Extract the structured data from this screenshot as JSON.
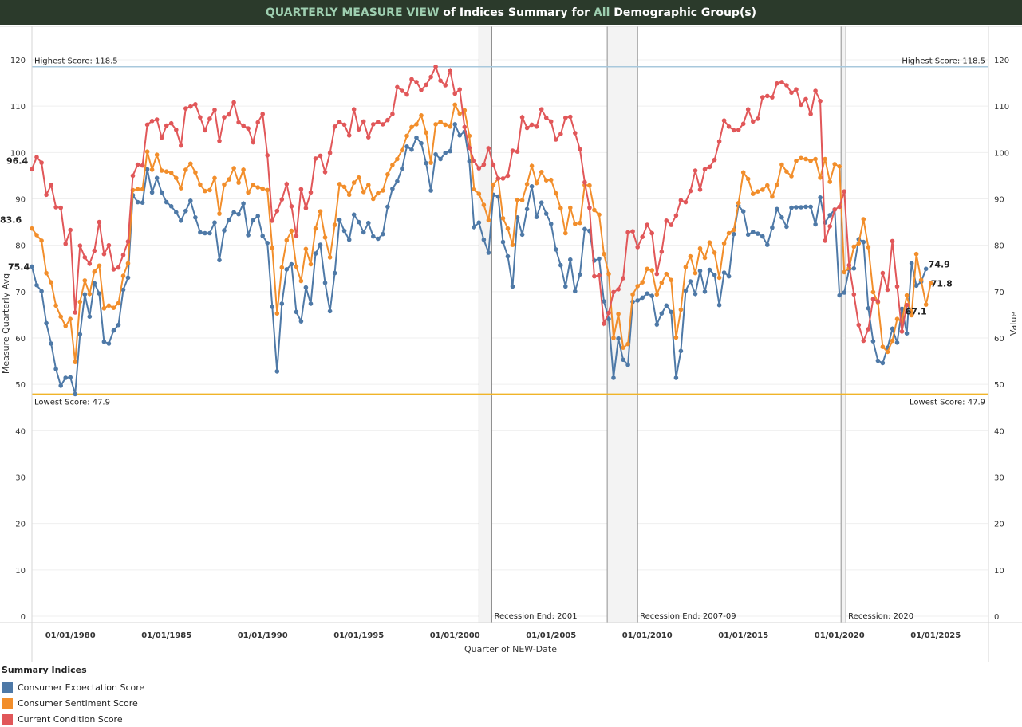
{
  "header": {
    "part1": "QUARTERLY MEASURE VIEW",
    "part2": " of Indices Summary for ",
    "part3": "All",
    "part4": " Demographic Group(s)"
  },
  "legend": {
    "title": "Summary Indices",
    "items": [
      {
        "label": "Consumer Expectation Score",
        "color": "#4e79a7"
      },
      {
        "label": "Consumer Sentiment  Score",
        "color": "#f28e2b"
      },
      {
        "label": "Current Condition Score",
        "color": "#e15759"
      }
    ]
  },
  "chart_data": {
    "type": "line",
    "xlabel": "Quarter of NEW-Date",
    "ylabel_left": "Measure Quarterly Avg",
    "ylabel_right": "Value",
    "ylim": [
      0,
      122
    ],
    "yticks": [
      0,
      10,
      20,
      30,
      40,
      50,
      60,
      70,
      80,
      90,
      100,
      110,
      120
    ],
    "xlim": [
      1978.0,
      2027.75
    ],
    "xticks": [
      {
        "x": 1980,
        "label": "01/01/1980"
      },
      {
        "x": 1985,
        "label": "01/01/1985"
      },
      {
        "x": 1990,
        "label": "01/01/1990"
      },
      {
        "x": 1995,
        "label": "01/01/1995"
      },
      {
        "x": 2000,
        "label": "01/01/2000"
      },
      {
        "x": 2005,
        "label": "01/01/2005"
      },
      {
        "x": 2010,
        "label": "01/01/2010"
      },
      {
        "x": 2015,
        "label": "01/01/2015"
      },
      {
        "x": 2020,
        "label": "01/01/2020"
      },
      {
        "x": 2025,
        "label": "01/01/2025"
      }
    ],
    "reference_lines": [
      {
        "value": 118.5,
        "label_left": "Highest Score: 118.5",
        "label_right": "Highest Score: 118.5",
        "color": "#a8c8dc"
      },
      {
        "value": 47.9,
        "label_left": "Lowest Score: 47.9",
        "label_right": "Lowest Score: 47.9",
        "color": "#f0b429"
      }
    ],
    "recession_bands": [
      {
        "start": 2001.25,
        "end": 2001.92,
        "label": "Recession End: 2001"
      },
      {
        "start": 2007.92,
        "end": 2009.5,
        "label": "Recession End: 2007-09"
      },
      {
        "start": 2020.08,
        "end": 2020.33,
        "label": "Recession: 2020"
      }
    ],
    "x_start": 1978.0,
    "x_step": 0.25,
    "series": [
      {
        "name": "Consumer Expectation Score",
        "color": "#4e79a7",
        "start_label": "75.4",
        "end_label": "74.9",
        "values": [
          75.4,
          71.4,
          70.1,
          63.2,
          58.8,
          53.3,
          49.7,
          51.4,
          51.5,
          47.9,
          60.8,
          69.4,
          64.6,
          71.8,
          69.6,
          59.2,
          58.8,
          61.6,
          62.8,
          70.4,
          73.0,
          90.8,
          89.3,
          89.2,
          96.4,
          91.4,
          94.5,
          91.4,
          89.3,
          88.4,
          87.1,
          85.3,
          87.4,
          89.6,
          86.0,
          82.8,
          82.6,
          82.6,
          84.9,
          76.8,
          83.2,
          85.5,
          87.1,
          86.7,
          89.0,
          82.2,
          85.4,
          86.3,
          82.0,
          80.5,
          66.7,
          52.8,
          67.4,
          74.8,
          75.9,
          65.6,
          63.6,
          70.9,
          67.4,
          78.2,
          80.1,
          71.9,
          65.8,
          74.0,
          85.5,
          83.1,
          81.2,
          86.6,
          85.0,
          82.8,
          84.8,
          81.9,
          81.4,
          82.4,
          88.3,
          92.2,
          93.8,
          96.5,
          101.3,
          100.6,
          103.2,
          102.0,
          97.7,
          91.8,
          99.6,
          98.6,
          99.9,
          100.3,
          106.1,
          103.7,
          104.5,
          98.1,
          83.9,
          84.9,
          81.2,
          78.4,
          90.9,
          90.5,
          80.7,
          77.6,
          71.1,
          86.0,
          82.3,
          87.8,
          92.7,
          86.1,
          89.2,
          86.8,
          84.6,
          79.1,
          75.7,
          71.1,
          76.9,
          70.1,
          73.7,
          83.5,
          83.1,
          76.7,
          77.1,
          67.9,
          64.1,
          51.4,
          59.9,
          55.3,
          54.2,
          67.8,
          68.1,
          68.7,
          69.6,
          69.1,
          62.9,
          65.3,
          67.0,
          65.6,
          51.4,
          57.2,
          70.2,
          72.2,
          69.5,
          74.5,
          70.0,
          74.7,
          73.6,
          67.1,
          74.1,
          73.3,
          82.4,
          88.5,
          87.3,
          82.3,
          82.9,
          82.5,
          81.9,
          80.1,
          83.8,
          87.8,
          86.0,
          84.0,
          88.1,
          88.2,
          88.2,
          88.3,
          88.3,
          84.5,
          90.3,
          84.9,
          86.5,
          87.7,
          69.2,
          69.8,
          74.8,
          75.0,
          81.3,
          80.7,
          66.4,
          59.3,
          55.1,
          54.6,
          57.9,
          62.0,
          59.0,
          66.3,
          61.0,
          76.1,
          71.3,
          72.1,
          74.9
        ]
      },
      {
        "name": "Consumer Sentiment  Score",
        "color": "#f28e2b",
        "start_label": "83.6",
        "end_label": "71.8",
        "values": [
          83.6,
          82.2,
          81.0,
          74.0,
          72.0,
          67.0,
          64.6,
          62.6,
          64.1,
          54.8,
          67.8,
          72.4,
          69.5,
          74.3,
          75.6,
          66.4,
          67.0,
          66.5,
          67.5,
          73.4,
          76.1,
          91.9,
          92.1,
          92.1,
          100.2,
          96.3,
          99.5,
          96.1,
          95.9,
          95.6,
          94.5,
          92.3,
          96.3,
          97.6,
          95.7,
          93.1,
          91.7,
          91.9,
          94.5,
          86.8,
          93.1,
          94.2,
          96.6,
          93.5,
          96.3,
          91.4,
          93.0,
          92.5,
          92.2,
          91.9,
          79.4,
          65.3,
          75.2,
          81.1,
          83.1,
          75.4,
          72.3,
          79.2,
          75.9,
          83.6,
          87.3,
          81.7,
          77.4,
          84.4,
          93.2,
          92.6,
          90.9,
          93.5,
          94.6,
          91.5,
          93.0,
          90.0,
          91.2,
          91.8,
          95.3,
          97.3,
          98.6,
          100.5,
          103.6,
          105.5,
          106.1,
          108.0,
          104.3,
          97.8,
          106.1,
          106.6,
          106.0,
          105.6,
          110.3,
          108.4,
          109.1,
          103.6,
          92.1,
          91.1,
          88.7,
          85.4,
          93.1,
          94.4,
          85.8,
          83.6,
          80.1,
          89.8,
          89.7,
          93.2,
          97.1,
          93.4,
          95.8,
          94.0,
          94.1,
          91.2,
          88.0,
          82.6,
          88.1,
          84.6,
          84.8,
          93.0,
          92.9,
          87.6,
          86.6,
          78.1,
          73.8,
          60.0,
          65.2,
          57.9,
          58.7,
          69.4,
          71.2,
          72.0,
          74.9,
          74.6,
          69.4,
          71.9,
          73.8,
          72.5,
          60.1,
          66.1,
          75.3,
          77.6,
          74.0,
          79.3,
          77.3,
          80.6,
          78.4,
          73.0,
          80.4,
          82.6,
          83.3,
          89.1,
          95.7,
          94.3,
          91.1,
          91.6,
          92.0,
          92.9,
          90.5,
          93.1,
          97.4,
          95.9,
          94.9,
          98.2,
          98.8,
          98.6,
          98.2,
          98.6,
          94.6,
          98.6,
          93.7,
          97.5,
          97.0,
          74.2,
          75.1,
          79.7,
          80.4,
          85.6,
          79.6,
          69.9,
          67.7,
          58.1,
          57.0,
          59.4,
          64.1,
          63.6,
          69.2,
          64.9,
          78.1,
          72.5,
          67.2,
          71.8
        ]
      },
      {
        "name": "Current Condition Score",
        "color": "#e15759",
        "start_label": "96.4",
        "end_label": "67.1",
        "values": [
          96.4,
          99.0,
          97.8,
          90.9,
          93.0,
          88.2,
          88.1,
          80.3,
          83.3,
          65.5,
          79.9,
          77.4,
          76.0,
          78.8,
          85.0,
          78.1,
          80.0,
          74.8,
          75.2,
          77.9,
          80.8,
          95.0,
          97.4,
          97.2,
          106.0,
          106.8,
          107.1,
          103.2,
          105.8,
          106.3,
          104.9,
          101.5,
          109.5,
          109.9,
          110.4,
          107.6,
          104.8,
          107.3,
          109.2,
          102.5,
          107.6,
          108.2,
          110.8,
          106.5,
          105.8,
          105.2,
          102.2,
          106.5,
          108.3,
          99.4,
          85.3,
          87.4,
          89.9,
          93.2,
          88.4,
          82.0,
          92.1,
          88.0,
          91.4,
          98.7,
          99.3,
          95.8,
          99.9,
          105.6,
          106.6,
          106.0,
          103.7,
          109.3,
          105.0,
          106.7,
          103.3,
          106.1,
          106.6,
          106.1,
          107.0,
          108.3,
          114.1,
          113.3,
          112.5,
          115.8,
          115.2,
          113.5,
          114.6,
          116.3,
          118.5,
          115.5,
          114.5,
          117.7,
          112.7,
          113.6,
          105.5,
          101.0,
          98.2,
          96.6,
          97.4,
          100.9,
          97.3,
          94.4,
          94.4,
          95.0,
          100.4,
          100.2,
          107.6,
          105.3,
          106.0,
          105.6,
          109.3,
          107.5,
          106.7,
          102.8,
          104.0,
          107.5,
          107.7,
          104.2,
          100.7,
          93.6,
          88.1,
          73.3,
          73.5,
          63.1,
          65.4,
          69.9,
          70.5,
          72.9,
          82.8,
          83.0,
          79.6,
          81.8,
          84.4,
          82.6,
          73.8,
          78.6,
          85.3,
          84.4,
          86.4,
          89.7,
          89.3,
          91.7,
          96.1,
          92.0,
          96.4,
          96.9,
          98.4,
          102.4,
          106.9,
          105.6,
          104.8,
          104.9,
          106.2,
          109.3,
          106.7,
          107.3,
          111.9,
          112.2,
          111.9,
          114.9,
          115.2,
          114.5,
          112.9,
          113.6,
          110.3,
          111.5,
          108.3,
          113.3,
          111.1,
          81.0,
          84.1,
          87.7,
          88.3,
          91.6,
          75.7,
          69.4,
          62.8,
          59.4,
          61.9,
          68.4,
          67.9,
          74.0,
          70.4,
          80.9,
          71.1,
          61.4,
          67.1
        ]
      }
    ]
  }
}
